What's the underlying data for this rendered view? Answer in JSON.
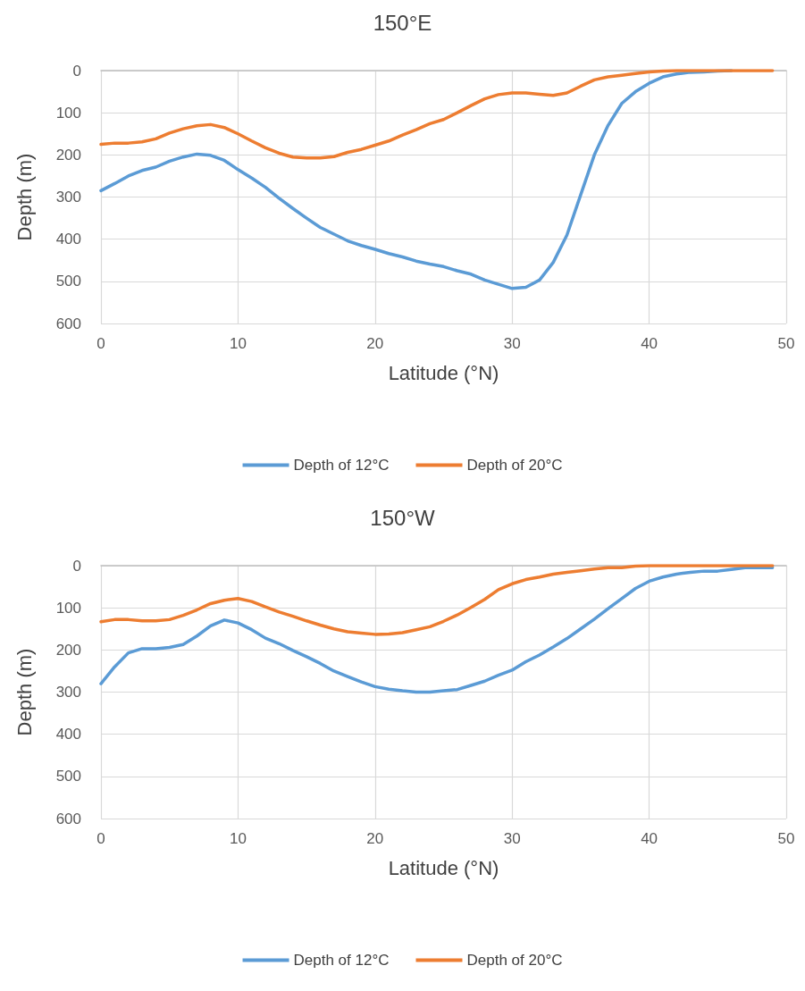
{
  "chart_data": [
    {
      "type": "line",
      "title": "150°E",
      "xlabel": "Latitude (°N)",
      "ylabel": "Depth (m)",
      "x": [
        0,
        1,
        2,
        3,
        4,
        5,
        6,
        7,
        8,
        9,
        10,
        11,
        12,
        13,
        14,
        15,
        16,
        17,
        18,
        19,
        20,
        21,
        22,
        23,
        24,
        25,
        26,
        27,
        28,
        29,
        30,
        31,
        32,
        33,
        34,
        35,
        36,
        37,
        38,
        39,
        40,
        41,
        42,
        43,
        44,
        45,
        46,
        47,
        48,
        49
      ],
      "series": [
        {
          "name": "Depth of 12°C",
          "color": "#5b9bd5",
          "values": [
            285,
            268,
            250,
            237,
            229,
            215,
            205,
            198,
            201,
            213,
            235,
            255,
            277,
            303,
            327,
            350,
            372,
            388,
            404,
            415,
            424,
            434,
            442,
            452,
            459,
            465,
            475,
            483,
            497,
            507,
            517,
            514,
            497,
            455,
            390,
            295,
            200,
            130,
            78,
            50,
            30,
            15,
            8,
            4,
            3,
            1,
            0,
            null,
            null,
            null
          ]
        },
        {
          "name": "Depth of 20°C",
          "color": "#ed7d31",
          "values": [
            175,
            172,
            172,
            169,
            162,
            148,
            138,
            131,
            128,
            135,
            150,
            167,
            183,
            196,
            205,
            207,
            207,
            204,
            194,
            187,
            177,
            167,
            153,
            140,
            126,
            116,
            100,
            83,
            67,
            57,
            53,
            53,
            56,
            59,
            53,
            37,
            22,
            15,
            11,
            7,
            3,
            1,
            0,
            0,
            0,
            0,
            0,
            0,
            0,
            0
          ]
        }
      ],
      "xlim": [
        0,
        50
      ],
      "xticks": [
        0,
        10,
        20,
        30,
        40,
        50
      ],
      "ylim": [
        600,
        0
      ],
      "yticks": [
        0,
        100,
        200,
        300,
        400,
        500,
        600
      ],
      "grid": true,
      "legend": "bottom",
      "marker": "none",
      "line_style": "solid"
    },
    {
      "type": "line",
      "title": "150°W",
      "xlabel": "Latitude (°N)",
      "ylabel": "Depth (m)",
      "x": [
        0,
        1,
        2,
        3,
        4,
        5,
        6,
        7,
        8,
        9,
        10,
        11,
        12,
        13,
        14,
        15,
        16,
        17,
        18,
        19,
        20,
        21,
        22,
        23,
        24,
        25,
        26,
        27,
        28,
        29,
        30,
        31,
        32,
        33,
        34,
        35,
        36,
        37,
        38,
        39,
        40,
        41,
        42,
        43,
        44,
        45,
        46,
        47,
        48,
        49
      ],
      "series": [
        {
          "name": "Depth of 12°C",
          "color": "#5b9bd5",
          "values": [
            280,
            240,
            207,
            197,
            197,
            194,
            187,
            167,
            143,
            129,
            136,
            152,
            172,
            185,
            201,
            216,
            232,
            250,
            263,
            276,
            287,
            293,
            297,
            300,
            300,
            297,
            294,
            284,
            274,
            260,
            248,
            228,
            212,
            193,
            173,
            150,
            127,
            102,
            78,
            54,
            37,
            27,
            20,
            16,
            13,
            13,
            9,
            5,
            5,
            5
          ]
        },
        {
          "name": "Depth of 20°C",
          "color": "#ed7d31",
          "values": [
            133,
            128,
            128,
            131,
            131,
            128,
            118,
            105,
            90,
            82,
            78,
            85,
            98,
            110,
            120,
            131,
            141,
            150,
            157,
            160,
            163,
            162,
            159,
            152,
            145,
            132,
            117,
            99,
            80,
            57,
            43,
            33,
            27,
            20,
            16,
            12,
            8,
            5,
            5,
            1,
            0,
            0,
            0,
            0,
            0,
            0,
            0,
            0,
            0,
            0
          ]
        }
      ],
      "xlim": [
        0,
        50
      ],
      "xticks": [
        0,
        10,
        20,
        30,
        40,
        50
      ],
      "ylim": [
        600,
        0
      ],
      "yticks": [
        0,
        100,
        200,
        300,
        400,
        500,
        600
      ],
      "grid": true,
      "legend": "bottom",
      "marker": "none",
      "line_style": "solid"
    }
  ]
}
